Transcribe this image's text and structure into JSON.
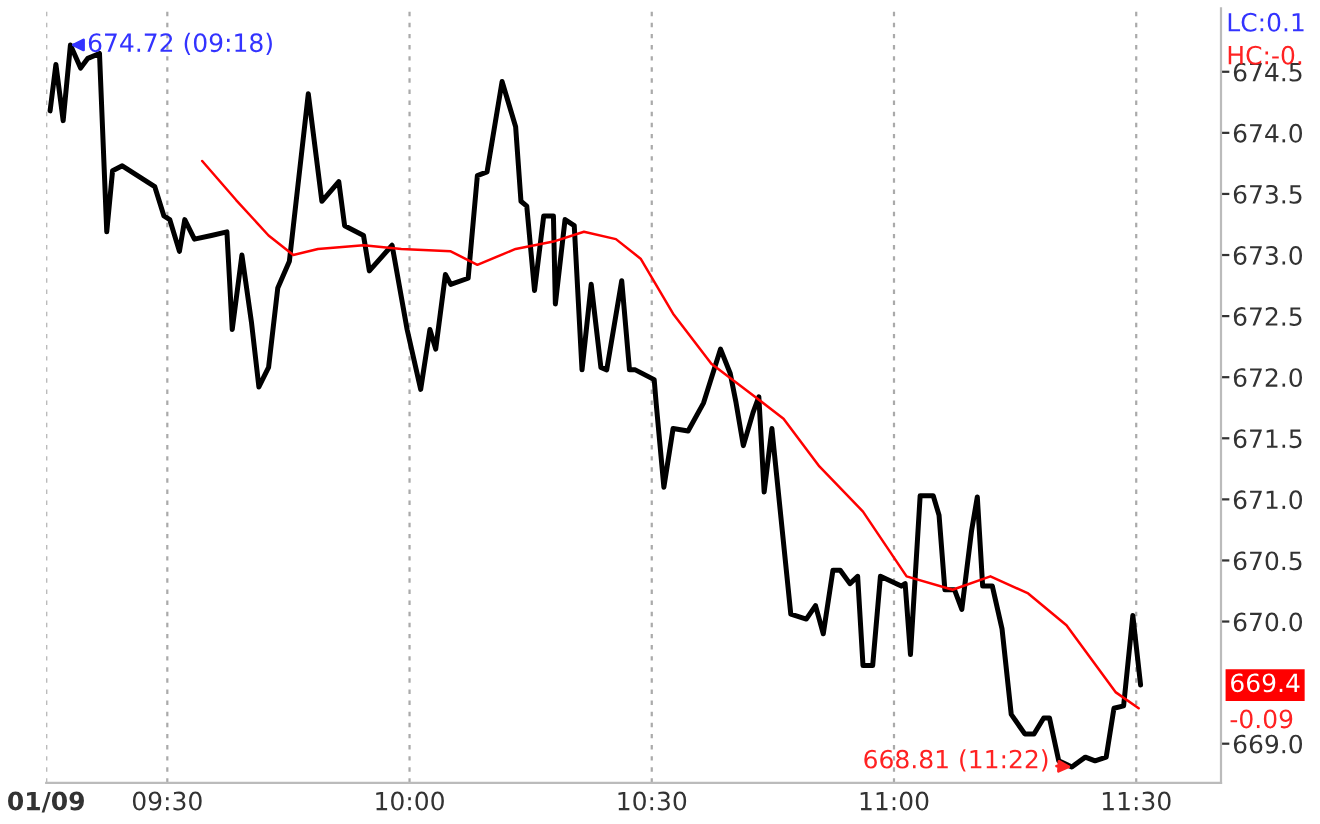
{
  "chart_data": {
    "type": "line",
    "x": [
      9.258,
      9.27,
      9.285,
      9.3,
      9.321,
      9.336,
      9.36,
      9.375,
      9.387,
      9.407,
      9.474,
      9.493,
      9.505,
      9.525,
      9.536,
      9.556,
      9.591,
      9.623,
      9.634,
      9.654,
      9.674,
      9.689,
      9.709,
      9.728,
      9.752,
      9.791,
      9.819,
      9.854,
      9.866,
      9.905,
      9.917,
      9.964,
      9.995,
      10.023,
      10.042,
      10.054,
      10.074,
      10.085,
      10.121,
      10.14,
      10.16,
      10.191,
      10.219,
      10.23,
      10.242,
      10.258,
      10.277,
      10.297,
      10.301,
      10.321,
      10.34,
      10.356,
      10.375,
      10.395,
      10.407,
      10.438,
      10.454,
      10.466,
      10.505,
      10.509,
      10.525,
      10.544,
      10.575,
      10.607,
      10.642,
      10.662,
      10.674,
      10.689,
      10.709,
      10.721,
      10.732,
      10.748,
      10.752,
      10.787,
      10.819,
      10.838,
      10.854,
      10.874,
      10.889,
      10.909,
      10.925,
      10.936,
      10.956,
      10.972,
      11.015,
      11.023,
      11.034,
      11.054,
      11.081,
      11.093,
      11.105,
      11.125,
      11.14,
      11.16,
      11.172,
      11.183,
      11.203,
      11.223,
      11.242,
      11.27,
      11.289,
      11.309,
      11.321,
      11.34,
      11.367,
      11.395,
      11.415,
      11.438,
      11.454,
      11.474,
      11.493,
      11.509
    ],
    "series": [
      {
        "color": "#000000",
        "values": [
          674.18,
          674.56,
          674.1,
          674.72,
          674.53,
          674.61,
          674.65,
          673.19,
          673.69,
          673.73,
          673.56,
          673.32,
          673.29,
          673.03,
          673.29,
          673.13,
          673.16,
          673.19,
          672.39,
          673.0,
          672.44,
          671.92,
          672.08,
          672.73,
          672.95,
          674.32,
          673.44,
          673.6,
          673.24,
          673.16,
          672.87,
          673.08,
          672.39,
          671.9,
          672.39,
          672.23,
          672.84,
          672.76,
          672.81,
          673.65,
          673.68,
          674.42,
          674.05,
          673.44,
          673.4,
          672.71,
          673.32,
          673.32,
          672.6,
          673.29,
          673.24,
          672.06,
          672.76,
          672.08,
          672.06,
          672.79,
          672.06,
          672.06,
          671.98,
          671.79,
          671.1,
          671.58,
          671.56,
          671.79,
          672.23,
          672.03,
          671.79,
          671.44,
          671.71,
          671.84,
          671.06,
          671.58,
          671.42,
          670.06,
          670.02,
          670.13,
          669.9,
          670.42,
          670.42,
          670.31,
          670.37,
          669.64,
          669.64,
          670.37,
          670.29,
          670.31,
          669.73,
          671.03,
          671.03,
          670.87,
          670.26,
          670.26,
          670.1,
          670.74,
          671.02,
          670.29,
          670.29,
          669.94,
          669.24,
          669.08,
          669.08,
          669.21,
          669.21,
          668.86,
          668.81,
          668.89,
          668.86,
          668.89,
          669.29,
          669.31,
          670.05,
          669.48
        ]
      },
      {
        "color": "#ff0000",
        "x": [
          9.572,
          9.642,
          9.709,
          9.76,
          9.811,
          9.905,
          9.983,
          10.085,
          10.14,
          10.219,
          10.297,
          10.36,
          10.426,
          10.477,
          10.544,
          10.623,
          10.713,
          10.772,
          10.846,
          10.936,
          11.026,
          11.121,
          11.199,
          11.277,
          11.356,
          11.458,
          11.505
        ],
        "values": [
          673.77,
          673.45,
          673.16,
          673.0,
          673.05,
          673.08,
          673.05,
          673.03,
          672.92,
          673.05,
          673.11,
          673.19,
          673.13,
          672.97,
          672.52,
          672.11,
          671.84,
          671.66,
          671.27,
          670.9,
          670.37,
          670.26,
          670.37,
          670.23,
          669.97,
          669.42,
          669.29
        ]
      }
    ],
    "xlim": [
      9.25,
      11.675
    ],
    "xticks": [
      {
        "value": 9.25,
        "label": "01/09"
      },
      {
        "value": 9.5,
        "label": "09:30"
      },
      {
        "value": 10,
        "label": "10:00"
      },
      {
        "value": 10.5,
        "label": "10:30"
      },
      {
        "value": 11,
        "label": "11:00"
      },
      {
        "value": 11.5,
        "label": "11:30"
      }
    ],
    "ylim": [
      668.68,
      675.02
    ],
    "yticks": [
      {
        "value": 669,
        "label": "669.0"
      },
      {
        "value": 670,
        "label": "670.0"
      },
      670.5,
      {
        "value": 671,
        "label": "671.0"
      },
      671.5,
      {
        "value": 672,
        "label": "672.0"
      },
      672.5,
      {
        "value": 673,
        "label": "673.0"
      },
      673.5,
      {
        "value": 674,
        "label": "674.0"
      },
      674.5
    ],
    "grid": "x",
    "line_style": "solid",
    "marker": "none",
    "annotations": [
      {
        "text": "674.72 (09:18)",
        "x": 9.3,
        "y": 674.72
      },
      {
        "text": "668.81 (11:22)",
        "x": 11.367,
        "y": 668.81
      },
      "LC:0.1",
      "HC:-0.",
      "669.4",
      "-0.09"
    ]
  }
}
